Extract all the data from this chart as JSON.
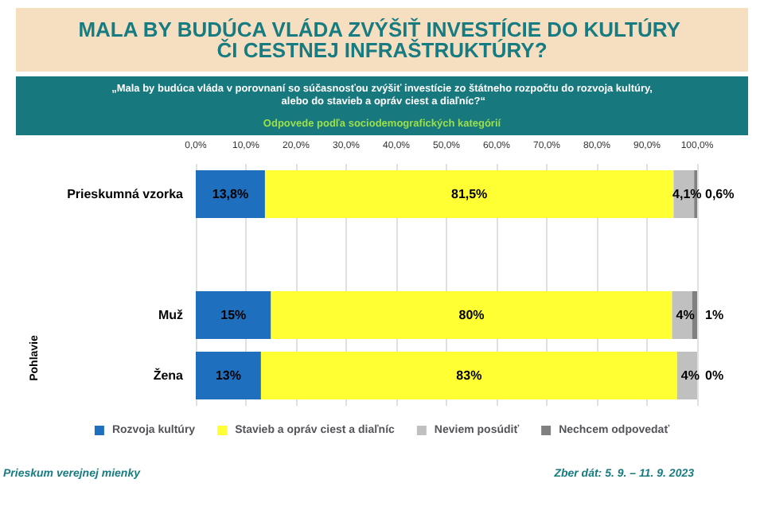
{
  "chart_data": {
    "type": "bar",
    "orientation": "horizontal",
    "stacked": true,
    "title": "MALA BY BUDÚCA VLÁDA ZVÝŠIŤ INVESTÍCIE DO KULTÚRY ČI CESTNEJ INFRAŠTRUKTÚRY?",
    "subtitle": "„Mala by budúca vláda v porovnaní so súčasnosťou zvýšiť investície zo štátneho rozpočtu do rozvoja kultúry, alebo do stavieb a opráv ciest a diaľníc?“",
    "annotations": [
      "Odpovede podľa sociodemografických kategórií",
      "Pohlavie",
      "Prieskum verejnej mienky",
      "Zber dát: 5. 9. – 11. 9. 2023"
    ],
    "categories": [
      "Prieskumná vzorka",
      null,
      "Muž",
      "Žena"
    ],
    "series": [
      {
        "name": "Rozvoja kultúry",
        "color": "#1f6fbf",
        "values": [
          13.8,
          null,
          15,
          13
        ],
        "value_labels": [
          "13,8%",
          null,
          "15%",
          "13%"
        ]
      },
      {
        "name": "Stavieb a opráv ciest a diaľníc",
        "color": "#ffff33",
        "values": [
          81.5,
          null,
          80,
          83
        ],
        "value_labels": [
          "81,5%",
          null,
          "80%",
          "83%"
        ]
      },
      {
        "name": "Neviem posúdiť",
        "color": "#c0c0c0",
        "values": [
          4.1,
          null,
          4,
          4
        ],
        "value_labels": [
          "4,1%",
          null,
          "4%",
          "4%"
        ]
      },
      {
        "name": "Nechcem odpovedať",
        "color": "#808080",
        "values": [
          0.6,
          null,
          1,
          0
        ],
        "value_labels": [
          "0,6%",
          null,
          "1%",
          "0%"
        ]
      }
    ],
    "xlim": [
      0,
      100
    ],
    "xticks": [
      {
        "value": 0,
        "label": "0,0%"
      },
      {
        "value": 10,
        "label": "10,0%"
      },
      {
        "value": 20,
        "label": "20,0%"
      },
      {
        "value": 30,
        "label": "30,0%"
      },
      {
        "value": 40,
        "label": "40,0%"
      },
      {
        "value": 50,
        "label": "50,0%"
      },
      {
        "value": 60,
        "label": "60,0%"
      },
      {
        "value": 70,
        "label": "70,0%"
      },
      {
        "value": 80,
        "label": "80,0%"
      },
      {
        "value": 90,
        "label": "90,0%"
      },
      {
        "value": 100,
        "label": "100,0%"
      }
    ],
    "grid": "x",
    "legend": "bottom"
  }
}
